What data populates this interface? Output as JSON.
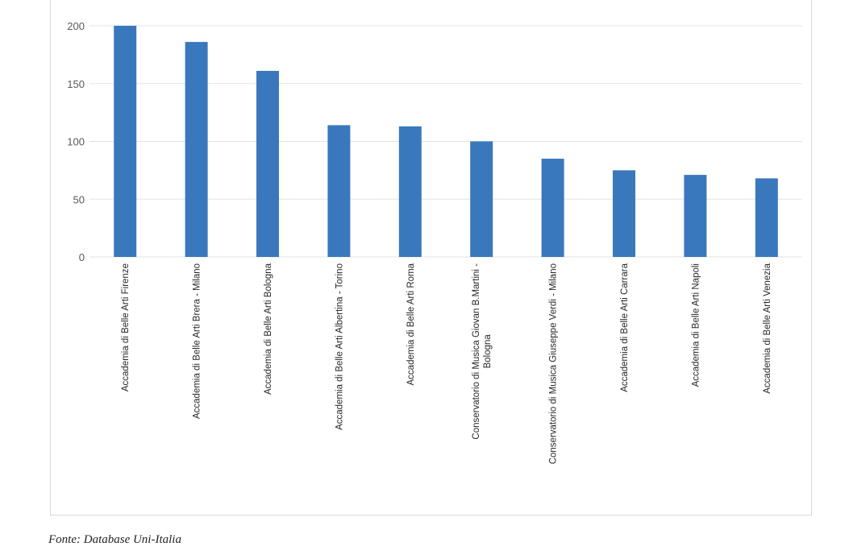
{
  "chart_data": {
    "type": "bar",
    "categories": [
      "Accademia di Belle Arti Firenze",
      "Accademia di Belle Arti Brera - Milano",
      "Accademia di Belle Arti Bologna",
      "Accademia di Belle Arti Albertina - Torino",
      "Accademia di Belle Arti Roma",
      "Conservatorio di Musica Giovan B.Martini - Bologna",
      "Conservatorio di Musica Giuseppe Verdi - Milano",
      "Accademia di Belle Arti Carrara",
      "Accademia di Belle Arti Napoli",
      "Accademia di Belle Arti Venezia"
    ],
    "category_lines": [
      [
        "Accademia di Belle Arti Firenze"
      ],
      [
        "Accademia di Belle Arti Brera - Milano"
      ],
      [
        "Accademia di Belle Arti Bologna"
      ],
      [
        "Accademia di Belle Arti Albertina - Torino"
      ],
      [
        "Accademia di Belle Arti Roma"
      ],
      [
        "Conservatorio di Musica Giovan B.Martini -",
        "Bologna"
      ],
      [
        "Conservatorio di Musica Giuseppe Verdi - Milano"
      ],
      [
        "Accademia di Belle Arti Carrara"
      ],
      [
        "Accademia di Belle Arti Napoli"
      ],
      [
        "Accademia di Belle Arti Venezia"
      ]
    ],
    "values": [
      200,
      186,
      161,
      114,
      113,
      100,
      85,
      75,
      71,
      68
    ],
    "yticks": [
      0,
      50,
      100,
      150,
      200
    ],
    "ylim": [
      0,
      200
    ],
    "grid": true,
    "bar_color": "#3a78bd",
    "grid_color": "#e3e3e3"
  },
  "source_note": "Fonte: Database Uni-Italia"
}
